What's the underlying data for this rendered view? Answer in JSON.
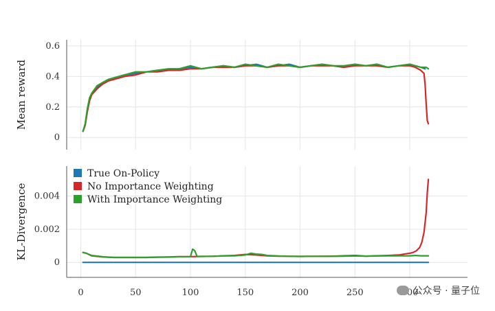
{
  "watermark": {
    "text": "公众号 · 量子位",
    "icon": "wechat-icon"
  },
  "colors": {
    "true_on_policy": "#1f77b4",
    "no_iw": "#d62728",
    "with_iw": "#2ca02c"
  },
  "chart_data": [
    {
      "type": "line",
      "title": "",
      "xlabel": "",
      "ylabel": "Mean reward",
      "xlim": [
        -10,
        325
      ],
      "ylim": [
        -0.08,
        0.64
      ],
      "yticks": [
        {
          "value": 0,
          "label": "0"
        },
        {
          "value": 0.2,
          "label": "0.2"
        },
        {
          "value": 0.4,
          "label": "0.4"
        },
        {
          "value": 0.6,
          "label": "0.6"
        }
      ],
      "xticks": [
        0,
        50,
        100,
        150,
        200,
        250,
        300
      ],
      "grid": true,
      "series": [
        {
          "name": "True On-Policy",
          "color": "#1f77b4",
          "x": [
            2,
            4,
            6,
            8,
            10,
            15,
            20,
            25,
            30,
            40,
            50,
            60,
            70,
            80,
            90,
            100,
            110,
            120,
            130,
            140,
            150,
            160,
            170,
            180,
            190,
            200,
            210,
            220,
            230,
            240,
            250,
            260,
            270,
            280,
            290,
            300,
            305,
            310,
            314
          ],
          "y": [
            0.04,
            0.08,
            0.18,
            0.25,
            0.28,
            0.33,
            0.36,
            0.38,
            0.39,
            0.41,
            0.42,
            0.43,
            0.44,
            0.44,
            0.45,
            0.46,
            0.45,
            0.46,
            0.47,
            0.46,
            0.47,
            0.48,
            0.46,
            0.47,
            0.48,
            0.46,
            0.47,
            0.48,
            0.47,
            0.46,
            0.48,
            0.47,
            0.48,
            0.46,
            0.47,
            0.48,
            0.47,
            0.46,
            0.45
          ]
        },
        {
          "name": "No Importance Weighting",
          "color": "#d62728",
          "x": [
            2,
            4,
            6,
            8,
            10,
            15,
            20,
            25,
            30,
            40,
            50,
            60,
            70,
            80,
            90,
            100,
            110,
            120,
            130,
            140,
            150,
            160,
            170,
            180,
            190,
            200,
            210,
            220,
            230,
            240,
            250,
            260,
            270,
            280,
            290,
            300,
            305,
            310,
            313,
            314,
            315,
            316,
            317
          ],
          "y": [
            0.04,
            0.08,
            0.17,
            0.24,
            0.28,
            0.32,
            0.35,
            0.37,
            0.38,
            0.4,
            0.41,
            0.43,
            0.43,
            0.44,
            0.44,
            0.45,
            0.45,
            0.46,
            0.46,
            0.46,
            0.47,
            0.47,
            0.46,
            0.47,
            0.47,
            0.46,
            0.47,
            0.47,
            0.47,
            0.46,
            0.47,
            0.47,
            0.47,
            0.46,
            0.47,
            0.47,
            0.46,
            0.44,
            0.42,
            0.35,
            0.22,
            0.11,
            0.09
          ]
        },
        {
          "name": "With Importance Weighting",
          "color": "#2ca02c",
          "x": [
            2,
            4,
            6,
            8,
            10,
            15,
            20,
            25,
            30,
            40,
            50,
            60,
            70,
            80,
            90,
            100,
            110,
            120,
            130,
            140,
            150,
            160,
            170,
            180,
            190,
            200,
            210,
            220,
            230,
            240,
            250,
            260,
            270,
            280,
            290,
            300,
            305,
            310,
            315,
            317
          ],
          "y": [
            0.04,
            0.09,
            0.19,
            0.26,
            0.29,
            0.34,
            0.36,
            0.38,
            0.39,
            0.41,
            0.43,
            0.43,
            0.44,
            0.45,
            0.45,
            0.47,
            0.45,
            0.46,
            0.47,
            0.46,
            0.48,
            0.47,
            0.46,
            0.48,
            0.47,
            0.46,
            0.47,
            0.48,
            0.47,
            0.47,
            0.48,
            0.47,
            0.48,
            0.46,
            0.47,
            0.48,
            0.47,
            0.46,
            0.46,
            0.45
          ]
        }
      ]
    },
    {
      "type": "line",
      "title": "",
      "xlabel": "",
      "ylabel": "KL-Divergence",
      "xlim": [
        -10,
        325
      ],
      "ylim": [
        -0.0009,
        0.0058
      ],
      "yticks": [
        {
          "value": 0,
          "label": "0"
        },
        {
          "value": 0.002,
          "label": "0.002"
        },
        {
          "value": 0.004,
          "label": "0.004"
        }
      ],
      "xticks": [
        0,
        50,
        100,
        150,
        200,
        250,
        300
      ],
      "xticklabels": [
        "0",
        "50",
        "100",
        "150",
        "200",
        "250",
        "300"
      ],
      "grid": true,
      "legend": "top-left",
      "series": [
        {
          "name": "True On-Policy",
          "color": "#1f77b4",
          "x": [
            2,
            317
          ],
          "y": [
            0.0,
            0.0
          ]
        },
        {
          "name": "No Importance Weighting",
          "color": "#d62728",
          "x": [
            2,
            5,
            10,
            20,
            30,
            40,
            50,
            60,
            70,
            80,
            90,
            100,
            110,
            120,
            130,
            140,
            150,
            160,
            170,
            180,
            190,
            200,
            210,
            220,
            230,
            240,
            250,
            260,
            270,
            280,
            290,
            295,
            300,
            303,
            306,
            309,
            311,
            313,
            315,
            316,
            317
          ],
          "y": [
            0.0006,
            0.00055,
            0.0004,
            0.00033,
            0.0003,
            0.0003,
            0.0003,
            0.0003,
            0.00032,
            0.00033,
            0.00035,
            0.00035,
            0.00036,
            0.00037,
            0.0004,
            0.00042,
            0.00048,
            0.00045,
            0.0004,
            0.00038,
            0.00037,
            0.00036,
            0.00037,
            0.00037,
            0.00038,
            0.0004,
            0.00042,
            0.00038,
            0.0004,
            0.00042,
            0.00045,
            0.0005,
            0.00055,
            0.0006,
            0.0007,
            0.0009,
            0.0012,
            0.0018,
            0.003,
            0.0042,
            0.005
          ]
        },
        {
          "name": "With Importance Weighting",
          "color": "#2ca02c",
          "x": [
            2,
            5,
            10,
            20,
            30,
            40,
            50,
            60,
            70,
            80,
            90,
            100,
            102,
            104,
            106,
            110,
            120,
            130,
            140,
            150,
            155,
            160,
            165,
            170,
            180,
            190,
            200,
            210,
            220,
            230,
            240,
            250,
            260,
            270,
            280,
            290,
            300,
            305,
            310,
            315,
            317
          ],
          "y": [
            0.0006,
            0.00055,
            0.00042,
            0.00034,
            0.0003,
            0.0003,
            0.0003,
            0.0003,
            0.00031,
            0.00032,
            0.00034,
            0.00035,
            0.0008,
            0.0007,
            0.00036,
            0.00036,
            0.00037,
            0.00039,
            0.0004,
            0.00045,
            0.00055,
            0.0005,
            0.00048,
            0.00042,
            0.00039,
            0.00037,
            0.00036,
            0.00037,
            0.00037,
            0.00037,
            0.00038,
            0.00039,
            0.00038,
            0.00039,
            0.0004,
            0.0004,
            0.0004,
            0.00042,
            0.0004,
            0.0004,
            0.0004
          ]
        }
      ]
    }
  ]
}
